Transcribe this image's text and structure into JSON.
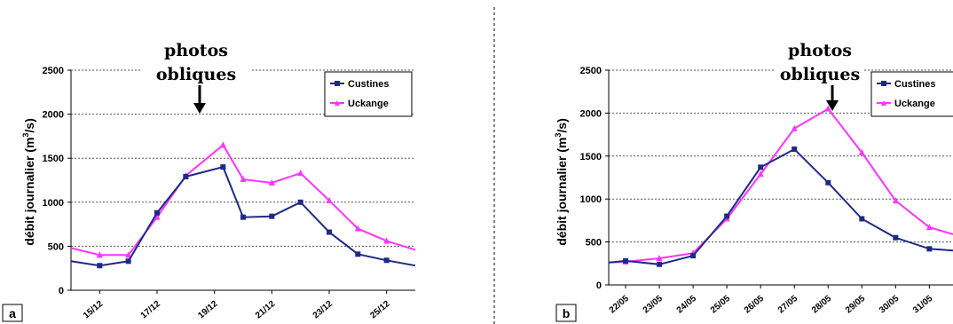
{
  "colors": {
    "custines": "#1f2a86",
    "uckange": "#ff33ff",
    "grid": "#555555",
    "axis": "#000000",
    "divider": "#000000"
  },
  "annotation": {
    "line1": "photos",
    "line2": "obliques",
    "icon": "down-arrow-icon"
  },
  "chart_data": [
    {
      "type": "line",
      "panel_label": "a",
      "ylabel": "débit journalier (m3/s)",
      "ylim": [
        0,
        2500
      ],
      "yticks": [
        0,
        500,
        1000,
        1500,
        2000,
        2500
      ],
      "grid": true,
      "legend": "top-right",
      "x_tick_labels": [
        "15/12",
        "17/12",
        "19/12",
        "21/12",
        "23/12",
        "25/12"
      ],
      "x_tick_positions": [
        1,
        3,
        5,
        7,
        9,
        11
      ],
      "x_range": [
        0,
        12
      ],
      "annotation_x": 5.3,
      "series": [
        {
          "name": "Custines",
          "marker": "square",
          "x": [
            0,
            1,
            2,
            3,
            4,
            5.3,
            6,
            7,
            8,
            9,
            10,
            11,
            12
          ],
          "values": [
            330,
            280,
            330,
            880,
            1290,
            1400,
            830,
            840,
            1000,
            660,
            410,
            340,
            280
          ]
        },
        {
          "name": "Uckange",
          "marker": "triangle",
          "x": [
            0,
            1,
            2,
            3,
            4,
            5.3,
            6,
            7,
            8,
            9,
            10,
            11,
            12
          ],
          "values": [
            480,
            400,
            400,
            830,
            1300,
            1650,
            1260,
            1220,
            1330,
            1020,
            700,
            560,
            460
          ]
        }
      ]
    },
    {
      "type": "line",
      "panel_label": "b",
      "ylabel": "débit journalier (m3/s)",
      "ylim": [
        0,
        2500
      ],
      "yticks": [
        0,
        500,
        1000,
        1500,
        2000,
        2500
      ],
      "grid": true,
      "legend": "top-right",
      "x_tick_labels": [
        "22/05",
        "23/05",
        "24/05",
        "25/05",
        "26/05",
        "27/05",
        "28/05",
        "29/05",
        "30/05",
        "31/05"
      ],
      "x_tick_positions": [
        1,
        2,
        3,
        4,
        5,
        6,
        7,
        8,
        9,
        10
      ],
      "x_range": [
        0.5,
        10.7
      ],
      "annotation_x": 7,
      "series": [
        {
          "name": "Custines",
          "marker": "square",
          "x": [
            0.5,
            1,
            2,
            3,
            4,
            5,
            6,
            7,
            8,
            9,
            10,
            10.7
          ],
          "values": [
            260,
            280,
            240,
            340,
            800,
            1370,
            1580,
            1190,
            770,
            550,
            420,
            400
          ]
        },
        {
          "name": "Uckange",
          "marker": "triangle",
          "x": [
            0.5,
            1,
            2,
            3,
            4,
            5,
            6,
            7,
            8,
            9,
            10,
            10.7
          ],
          "values": [
            260,
            270,
            310,
            370,
            770,
            1290,
            1820,
            2050,
            1540,
            980,
            670,
            590
          ]
        }
      ]
    }
  ]
}
